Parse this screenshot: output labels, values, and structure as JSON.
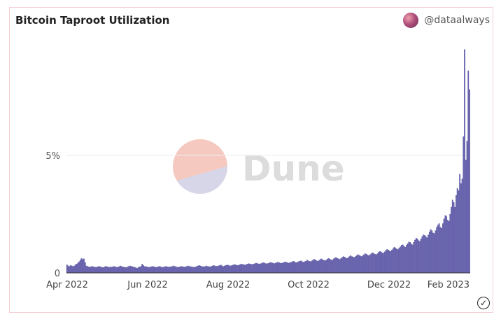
{
  "header": {
    "title": "Bitcoin Taproot Utilization",
    "author": "@dataalways"
  },
  "watermark": "Dune",
  "icons": {
    "verified": "check-circle-icon",
    "avatar": "user-avatar"
  },
  "colors": {
    "bar": "#6b66b0",
    "bar_stroke": "#4f4a9a",
    "watermark_top": "#f6c9c0",
    "watermark_bottom": "#d7d5e8"
  },
  "chart_data": {
    "type": "bar",
    "title": "Bitcoin Taproot Utilization",
    "xlabel": "",
    "ylabel": "",
    "x_ticks": [
      "Apr 2022",
      "Jun 2022",
      "Aug 2022",
      "Oct 2022",
      "Dec 2022",
      "Feb 2023"
    ],
    "y_ticks": [
      "0",
      "5%"
    ],
    "ylim": [
      0,
      9.5
    ],
    "grid": true,
    "x_start": "2022-04-01",
    "x_end": "2023-02-10",
    "series": [
      {
        "values": [
          0.35,
          0.3,
          0.28,
          0.32,
          0.3,
          0.28,
          0.3,
          0.35,
          0.38,
          0.42,
          0.48,
          0.55,
          0.62,
          0.58,
          0.6,
          0.45,
          0.3,
          0.28,
          0.26,
          0.25,
          0.27,
          0.28,
          0.26,
          0.25,
          0.24,
          0.26,
          0.27,
          0.28,
          0.25,
          0.24,
          0.23,
          0.26,
          0.28,
          0.27,
          0.25,
          0.24,
          0.26,
          0.25,
          0.27,
          0.28,
          0.26,
          0.24,
          0.25,
          0.27,
          0.3,
          0.28,
          0.26,
          0.25,
          0.24,
          0.23,
          0.26,
          0.28,
          0.3,
          0.28,
          0.27,
          0.25,
          0.24,
          0.22,
          0.2,
          0.24,
          0.26,
          0.28,
          0.38,
          0.32,
          0.28,
          0.27,
          0.26,
          0.25,
          0.24,
          0.26,
          0.27,
          0.28,
          0.26,
          0.25,
          0.24,
          0.26,
          0.28,
          0.27,
          0.25,
          0.24,
          0.26,
          0.27,
          0.28,
          0.26,
          0.25,
          0.26,
          0.27,
          0.28,
          0.3,
          0.28,
          0.26,
          0.25,
          0.24,
          0.26,
          0.28,
          0.27,
          0.26,
          0.25,
          0.27,
          0.28,
          0.3,
          0.28,
          0.27,
          0.26,
          0.25,
          0.24,
          0.26,
          0.28,
          0.3,
          0.32,
          0.3,
          0.28,
          0.27,
          0.26,
          0.28,
          0.3,
          0.28,
          0.27,
          0.26,
          0.28,
          0.3,
          0.32,
          0.3,
          0.28,
          0.29,
          0.3,
          0.32,
          0.34,
          0.3,
          0.28,
          0.3,
          0.32,
          0.34,
          0.33,
          0.31,
          0.3,
          0.32,
          0.34,
          0.36,
          0.35,
          0.33,
          0.32,
          0.34,
          0.36,
          0.38,
          0.36,
          0.35,
          0.34,
          0.36,
          0.38,
          0.4,
          0.38,
          0.37,
          0.36,
          0.38,
          0.4,
          0.42,
          0.4,
          0.39,
          0.38,
          0.4,
          0.42,
          0.44,
          0.42,
          0.4,
          0.39,
          0.41,
          0.43,
          0.45,
          0.43,
          0.42,
          0.4,
          0.42,
          0.44,
          0.46,
          0.44,
          0.42,
          0.41,
          0.43,
          0.45,
          0.47,
          0.45,
          0.44,
          0.42,
          0.44,
          0.46,
          0.48,
          0.5,
          0.46,
          0.44,
          0.46,
          0.48,
          0.5,
          0.52,
          0.48,
          0.46,
          0.48,
          0.5,
          0.55,
          0.52,
          0.5,
          0.48,
          0.52,
          0.56,
          0.58,
          0.55,
          0.52,
          0.5,
          0.54,
          0.58,
          0.6,
          0.56,
          0.54,
          0.52,
          0.56,
          0.6,
          0.62,
          0.58,
          0.56,
          0.55,
          0.6,
          0.64,
          0.66,
          0.62,
          0.6,
          0.58,
          0.62,
          0.66,
          0.7,
          0.68,
          0.64,
          0.62,
          0.66,
          0.7,
          0.74,
          0.7,
          0.68,
          0.66,
          0.7,
          0.74,
          0.78,
          0.75,
          0.72,
          0.7,
          0.74,
          0.78,
          0.82,
          0.8,
          0.76,
          0.74,
          0.78,
          0.82,
          0.86,
          0.84,
          0.8,
          0.78,
          0.82,
          0.88,
          0.92,
          0.9,
          0.86,
          0.84,
          0.9,
          0.96,
          1.0,
          0.98,
          0.94,
          0.92,
          0.98,
          1.04,
          1.1,
          1.06,
          1.02,
          1.0,
          1.06,
          1.12,
          1.18,
          1.2,
          1.14,
          1.1,
          1.18,
          1.25,
          1.32,
          1.3,
          1.24,
          1.2,
          1.3,
          1.4,
          1.48,
          1.45,
          1.38,
          1.35,
          1.45,
          1.55,
          1.62,
          1.6,
          1.55,
          1.5,
          1.62,
          1.75,
          1.85,
          1.8,
          1.7,
          1.68,
          1.8,
          1.95,
          2.05,
          2.1,
          1.95,
          1.9,
          2.1,
          2.3,
          2.45,
          2.4,
          2.25,
          2.2,
          2.5,
          2.8,
          3.1,
          3.0,
          2.8,
          3.3,
          3.6,
          3.5,
          4.2,
          3.8,
          4.0,
          5.8,
          9.5,
          4.8,
          5.6,
          8.6,
          7.8
        ]
      }
    ]
  }
}
